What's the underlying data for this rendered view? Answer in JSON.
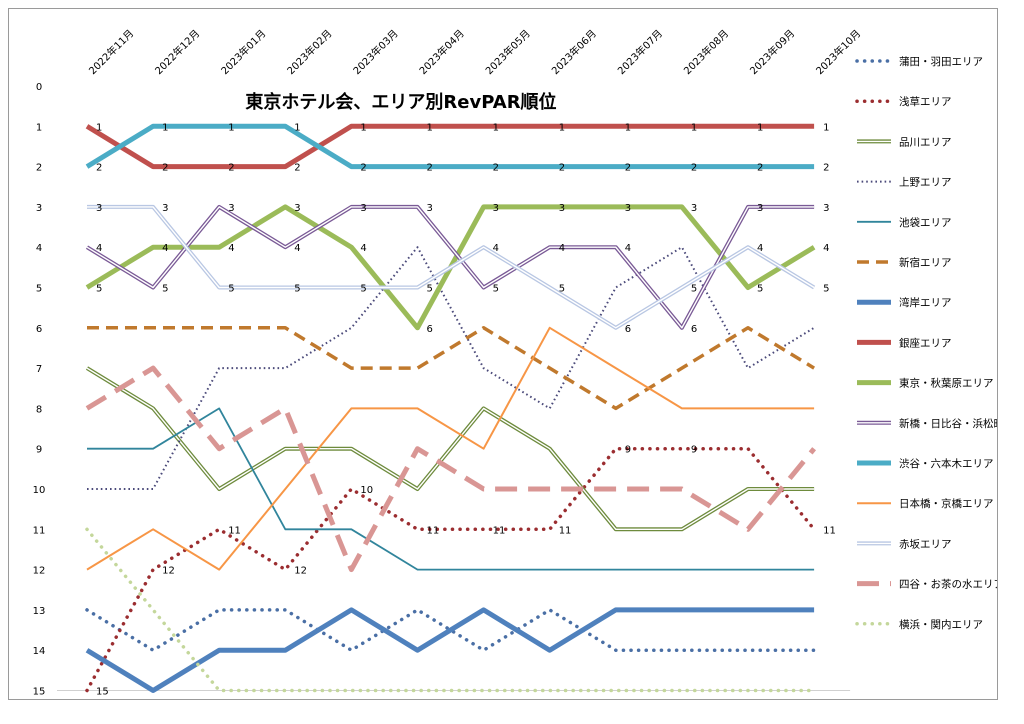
{
  "chart_data": {
    "type": "line",
    "title": "東京ホテル会、エリア別RevPAR順位",
    "categories": [
      "2022年11月",
      "2022年12月",
      "2023年01月",
      "2023年02月",
      "2023年03月",
      "2023年04月",
      "2023年05月",
      "2023年06月",
      "2023年07月",
      "2023年08月",
      "2023年09月",
      "2023年10月"
    ],
    "y_ticks": [
      "0",
      "1",
      "2",
      "3",
      "4",
      "5",
      "6",
      "7",
      "8",
      "9",
      "10",
      "11",
      "12",
      "13",
      "14",
      "15"
    ],
    "ylim": [
      0,
      15
    ],
    "y_inverted": true,
    "legend_position": "right",
    "series": [
      {
        "name": "蒲田・羽田エリア",
        "color": "#4a6fa5",
        "style": "dotted-round",
        "width": 3.5,
        "values": [
          13,
          14,
          13,
          13,
          14,
          13,
          14,
          13,
          14,
          14,
          14,
          14
        ],
        "labels": []
      },
      {
        "name": "浅草エリア",
        "color": "#9b2d30",
        "style": "dotted-round",
        "width": 3.5,
        "values": [
          15,
          12,
          11,
          12,
          10,
          11,
          11,
          11,
          9,
          9,
          9,
          11
        ],
        "labels": [
          "15",
          "12",
          "11",
          "12",
          "10",
          "11",
          "11",
          "11",
          "9",
          "9",
          "",
          "11"
        ]
      },
      {
        "name": "品川エリア",
        "color": "#6e8b3d",
        "style": "double",
        "width": 4,
        "values": [
          7,
          8,
          10,
          9,
          9,
          10,
          8,
          9,
          11,
          11,
          10,
          10
        ],
        "labels": []
      },
      {
        "name": "上野エリア",
        "color": "#4b4a7a",
        "style": "dotted-fine",
        "width": 2,
        "values": [
          10,
          10,
          7,
          7,
          6,
          4,
          7,
          8,
          5,
          4,
          7,
          6
        ],
        "labels": []
      },
      {
        "name": "池袋エリア",
        "color": "#31859c",
        "style": "solid",
        "width": 1.8,
        "values": [
          9,
          9,
          8,
          11,
          11,
          12,
          12,
          12,
          12,
          12,
          12,
          12
        ],
        "labels": []
      },
      {
        "name": "新宿エリア",
        "color": "#c0792d",
        "style": "dashed",
        "width": 3.5,
        "values": [
          6,
          6,
          6,
          6,
          7,
          7,
          6,
          7,
          8,
          7,
          6,
          7
        ],
        "labels": []
      },
      {
        "name": "湾岸エリア",
        "color": "#4f81bd",
        "style": "solid",
        "width": 5,
        "values": [
          14,
          15,
          14,
          14,
          13,
          14,
          13,
          14,
          13,
          13,
          13,
          13
        ],
        "labels": []
      },
      {
        "name": "銀座エリア",
        "color": "#c0504d",
        "style": "solid",
        "width": 5,
        "values": [
          1,
          2,
          2,
          2,
          1,
          1,
          1,
          1,
          1,
          1,
          1,
          1
        ],
        "labels": [
          "1",
          "2",
          "2",
          "2",
          "1",
          "1",
          "1",
          "1",
          "1",
          "1",
          "1",
          "1"
        ]
      },
      {
        "name": "東京・秋葉原エリア",
        "color": "#9bbb59",
        "style": "solid",
        "width": 5,
        "values": [
          5,
          4,
          4,
          3,
          4,
          6,
          3,
          3,
          3,
          3,
          5,
          4
        ],
        "labels": [
          "5",
          "4",
          "4",
          "3",
          "4",
          "6",
          "3",
          "3",
          "3",
          "3",
          "5",
          "4"
        ]
      },
      {
        "name": "新橋・日比谷・浜松町",
        "color": "#7a5a96",
        "style": "double",
        "width": 4,
        "values": [
          4,
          5,
          3,
          4,
          3,
          3,
          5,
          4,
          4,
          6,
          3,
          3
        ],
        "labels": [
          "4",
          "5",
          "3",
          "4",
          "3",
          "3",
          "5",
          "4",
          "4",
          "6",
          "3",
          "3"
        ]
      },
      {
        "name": "渋谷・六本木エリア",
        "color": "#4bacc6",
        "style": "solid",
        "width": 5,
        "values": [
          2,
          1,
          1,
          1,
          2,
          2,
          2,
          2,
          2,
          2,
          2,
          2
        ],
        "labels": [
          "2",
          "1",
          "1",
          "1",
          "2",
          "2",
          "2",
          "2",
          "2",
          "2",
          "2",
          "2"
        ]
      },
      {
        "name": "日本橋・京橋エリア",
        "color": "#f79646",
        "style": "solid",
        "width": 2,
        "values": [
          12,
          11,
          12,
          10,
          8,
          8,
          9,
          6,
          7,
          8,
          8,
          8
        ],
        "labels": []
      },
      {
        "name": "赤坂エリア",
        "color": "#b9c7e3",
        "style": "double",
        "width": 4,
        "values": [
          3,
          3,
          5,
          5,
          5,
          5,
          4,
          5,
          6,
          5,
          4,
          5
        ],
        "labels": [
          "3",
          "3",
          "5",
          "5",
          "5",
          "5",
          "4",
          "5",
          "6",
          "5",
          "4",
          "5"
        ]
      },
      {
        "name": "四谷・お茶の水エリア",
        "color": "#d99694",
        "style": "dashed-long",
        "width": 5,
        "values": [
          8,
          7,
          9,
          8,
          12,
          9,
          10,
          10,
          10,
          10,
          11,
          9
        ],
        "labels": []
      },
      {
        "name": "横浜・関内エリア",
        "color": "#c4d79b",
        "style": "dotted-round",
        "width": 3.5,
        "values": [
          11,
          13,
          15,
          15,
          15,
          15,
          15,
          15,
          15,
          15,
          15,
          15
        ],
        "labels": []
      }
    ]
  }
}
